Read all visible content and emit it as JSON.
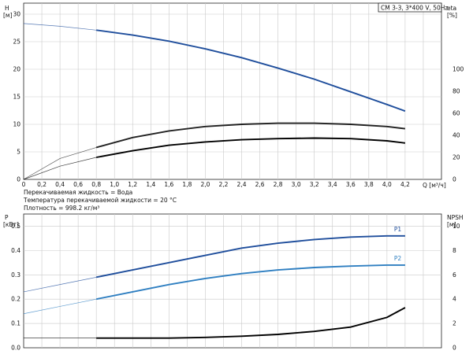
{
  "model_label": "CM 3-3, 3*400 V, 50Hz",
  "fluid_info": [
    "Перекачиваемая жидкость = Вода",
    "Температура перекачиваемой жидкости = 20 °C",
    "Плотность = 998.2 кг/м³"
  ],
  "chart_data": [
    {
      "type": "line",
      "title": "",
      "xlabel": "Q [м³/ч]",
      "ylabel": "H\n[м]",
      "ylabel_right": "eta\n[%]",
      "xlim": [
        0,
        4.6
      ],
      "ylim": [
        0,
        32
      ],
      "ylim_right": [
        0,
        160
      ],
      "x_ticks": [
        "0",
        "0,2",
        "0,4",
        "0,6",
        "0,8",
        "1,0",
        "1,2",
        "1,4",
        "1,6",
        "1,8",
        "2,0",
        "2,2",
        "2,4",
        "2,6",
        "2,8",
        "3,0",
        "3,2",
        "3,4",
        "3,6",
        "3,8",
        "4,0",
        "4,2"
      ],
      "y_ticks": [
        0,
        5,
        10,
        15,
        20,
        25,
        30
      ],
      "y_ticks_right": [
        0,
        20,
        40,
        60,
        80,
        100
      ],
      "grid": true,
      "series": [
        {
          "name": "",
          "axis": "left",
          "color": "#1f4e9c",
          "x": [
            0,
            0.4,
            0.8,
            1.2,
            1.6,
            2.0,
            2.4,
            2.8,
            3.2,
            3.6,
            4.0,
            4.2
          ],
          "values": [
            28.3,
            27.8,
            27.1,
            26.2,
            25.1,
            23.7,
            22.1,
            20.2,
            18.2,
            15.9,
            13.6,
            12.4
          ],
          "operating_from": 0.8
        },
        {
          "name": "",
          "axis": "right",
          "color": "#222222",
          "x": [
            0,
            0.4,
            0.8,
            1.2,
            1.6,
            2.0,
            2.4,
            2.8,
            3.2,
            3.6,
            4.0,
            4.2
          ],
          "values": [
            0,
            19,
            29,
            38,
            44,
            48,
            50,
            51,
            51,
            50,
            48,
            46
          ],
          "operating_from": 0.8
        },
        {
          "name": "",
          "axis": "right",
          "color": "#000000",
          "x": [
            0,
            0.4,
            0.8,
            1.2,
            1.6,
            2.0,
            2.4,
            2.8,
            3.2,
            3.6,
            4.0,
            4.2
          ],
          "values": [
            0,
            12,
            20,
            26,
            31,
            34,
            36,
            37,
            37.5,
            37,
            35,
            33
          ],
          "operating_from": 0.8
        }
      ]
    },
    {
      "type": "line",
      "title": "",
      "xlabel": "",
      "ylabel": "P\n[кВт]",
      "ylabel_right": "NPSH\n[м]",
      "xlim": [
        0,
        4.6
      ],
      "ylim": [
        0,
        0.55
      ],
      "ylim_right": [
        0,
        11
      ],
      "y_ticks": [
        0.0,
        0.1,
        0.2,
        0.3,
        0.4,
        0.5
      ],
      "y_ticks_right": [
        0,
        2,
        4,
        6,
        8,
        10
      ],
      "grid": true,
      "series": [
        {
          "name": "P1",
          "axis": "left",
          "color": "#1f4e9c",
          "x": [
            0,
            0.4,
            0.8,
            1.2,
            1.6,
            2.0,
            2.4,
            2.8,
            3.2,
            3.6,
            4.0,
            4.2
          ],
          "values": [
            0.23,
            0.26,
            0.29,
            0.32,
            0.35,
            0.38,
            0.41,
            0.43,
            0.445,
            0.455,
            0.46,
            0.46
          ],
          "operating_from": 0.8
        },
        {
          "name": "P2",
          "axis": "left",
          "color": "#2f7fc1",
          "x": [
            0,
            0.4,
            0.8,
            1.2,
            1.6,
            2.0,
            2.4,
            2.8,
            3.2,
            3.6,
            4.0,
            4.2
          ],
          "values": [
            0.14,
            0.17,
            0.2,
            0.23,
            0.26,
            0.285,
            0.305,
            0.32,
            0.33,
            0.336,
            0.34,
            0.34
          ],
          "operating_from": 0.8
        },
        {
          "name": "",
          "axis": "right",
          "color": "#000000",
          "x": [
            0,
            0.4,
            0.8,
            1.2,
            1.6,
            2.0,
            2.4,
            2.8,
            3.2,
            3.6,
            4.0,
            4.2
          ],
          "values": [
            0.8,
            0.8,
            0.8,
            0.8,
            0.8,
            0.85,
            0.95,
            1.1,
            1.35,
            1.7,
            2.5,
            3.3
          ],
          "operating_from": 0.8
        }
      ]
    }
  ]
}
